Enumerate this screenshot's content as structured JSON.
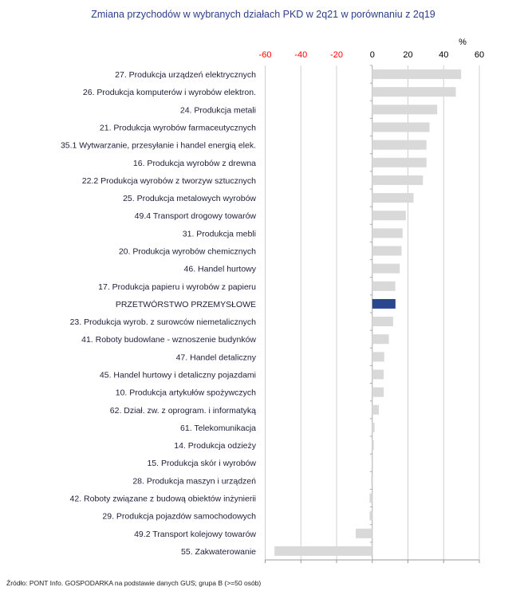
{
  "chart_data": {
    "type": "bar",
    "orientation": "horizontal",
    "title": "Zmiana przychodów w wybranych działach PKD w 2q21 w porównaniu z 2q19",
    "unit_label": "%",
    "xlim": [
      -60,
      60
    ],
    "xticks": [
      -60,
      -40,
      -20,
      0,
      20,
      40,
      60
    ],
    "grid": true,
    "colors": {
      "default": "#d9d9d9",
      "highlight": "#2a468c",
      "negative_tick": "#ff0000",
      "positive_tick": "#000000"
    },
    "categories": [
      "27. Produkcja urządzeń elektrycznych",
      "26. Produkcja komputerów i wyrobów elektron.",
      "24. Produkcja metali",
      "21. Produkcja wyrobów farmaceutycznych",
      "35.1 Wytwarzanie, przesyłanie i handel energią elek.",
      "16. Produkcja wyrobów z drewna",
      "22.2 Produkcja wyrobów z tworzyw sztucznych",
      "25. Produkcja metalowych wyrobów",
      "49.4 Transport drogowy towarów",
      "31. Produkcja mebli",
      "20. Produkcja wyrobów chemicznych",
      "46. Handel hurtowy",
      "17. Produkcja papieru i wyrobów z papieru",
      "PRZETWÓRSTWO PRZEMYSŁOWE",
      "23. Produkcja wyrob. z surowców niemetalicznych",
      "41. Roboty budowlane - wznoszenie budynków",
      "47. Handel detaliczny",
      "45. Handel hurtowy i detaliczny pojazdami",
      "10. Produkcja artykułów spożywczych",
      "62. Dział. zw. z oprogram. i informatyką",
      "61. Telekomunikacja",
      "14. Produkcja odzieży",
      "15. Produkcja skór i wyrobów",
      "28. Produkcja maszyn i urządzeń",
      "42. Roboty związane z budową obiektów inżynierii",
      "29. Produkcja pojazdów samochodowych",
      "49.2 Transport kolejowy towarów",
      "55. Zakwaterowanie"
    ],
    "values": [
      49.8,
      46.8,
      36.4,
      32.1,
      30.4,
      30.4,
      28.4,
      23.1,
      18.8,
      17.0,
      16.4,
      15.4,
      12.9,
      13.0,
      11.7,
      9.3,
      6.7,
      6.4,
      6.4,
      3.7,
      1.3,
      0.9,
      0.4,
      -0.6,
      -1.5,
      -1.5,
      -9.3,
      -54.8
    ],
    "highlight_index": 13
  },
  "footer": "Źródło: PONT Info. GOSPODARKA na podstawie danych GUS; grupa B (>=50 osób)"
}
